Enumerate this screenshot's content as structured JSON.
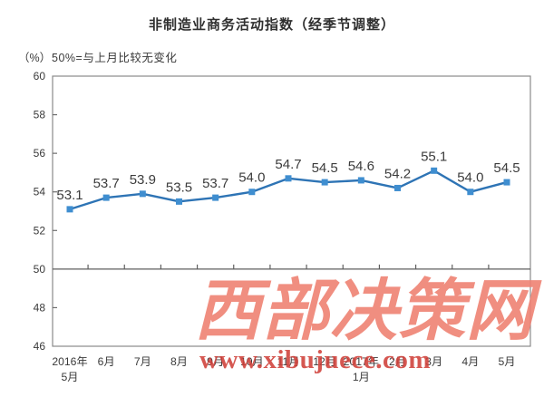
{
  "title": "非制造业商务活动指数（经季节调整）",
  "unit_label": "（%）",
  "note": "50%=与上月比较无变化",
  "watermark": {
    "name": "西部决策网",
    "url": "www.xibujuece.com"
  },
  "colors": {
    "line": "#2e74b5",
    "marker": "#3f8ed0",
    "frame": "#8a8a8a",
    "reference_line": "#5f5f5f",
    "tick": "#6e6e6e",
    "axis_text": "#3a3a3a",
    "data_label_text": "#3c3c3c",
    "watermark_name": "#ef8273",
    "watermark_url": "#d0403a"
  },
  "chart_data": {
    "type": "line",
    "title": "非制造业商务活动指数（经季节调整）",
    "subtitle": "50%=与上月比较无变化",
    "ylabel": "（%）",
    "categories": [
      "2016年5月",
      "6月",
      "7月",
      "8月",
      "9月",
      "10月",
      "11月",
      "12月",
      "2017年1月",
      "2月",
      "3月",
      "4月",
      "5月"
    ],
    "category_label_lines": [
      [
        "2016年",
        "5月"
      ],
      [
        "6月"
      ],
      [
        "7月"
      ],
      [
        "8月"
      ],
      [
        "9月"
      ],
      [
        "10月"
      ],
      [
        "11月"
      ],
      [
        "12月"
      ],
      [
        "2017年",
        "1月"
      ],
      [
        "2月"
      ],
      [
        "3月"
      ],
      [
        "4月"
      ],
      [
        "5月"
      ]
    ],
    "values": [
      53.1,
      53.7,
      53.9,
      53.5,
      53.7,
      54.0,
      54.7,
      54.5,
      54.6,
      54.2,
      55.1,
      54.0,
      54.5
    ],
    "value_labels": [
      "53.1",
      "53.7",
      "53.9",
      "53.5",
      "53.7",
      "54.0",
      "54.7",
      "54.5",
      "54.6",
      "54.2",
      "55.1",
      "54.0",
      "54.5"
    ],
    "ylim": [
      46,
      60
    ],
    "ytick_step": 2,
    "reference_line": 50,
    "grid": false,
    "legend": "none",
    "marker": "square"
  }
}
